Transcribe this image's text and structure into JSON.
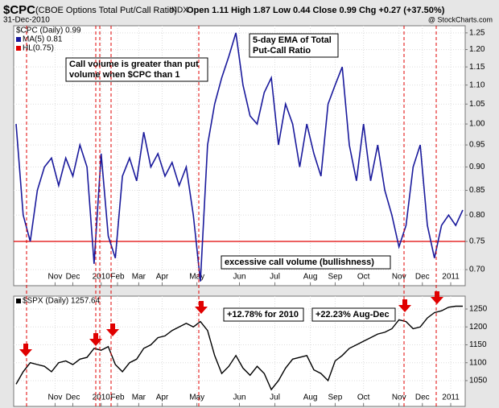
{
  "header": {
    "symbol": "$CPC",
    "name": "(CBOE Options Total Put/Call Ratio)",
    "exchange": "INDX",
    "date": "31-Dec-2010",
    "ohlc": "Open 1.11 High 1.87 Low 0.44 Close 0.99 Chg +0.27 (+37.50%)",
    "credit": "@ StockCharts.com"
  },
  "chart_data": [
    {
      "type": "line",
      "log_scale": true,
      "grid": true,
      "legend_header": "$CPC (Daily) 0.99",
      "xlim": [
        0,
        63
      ],
      "xticks": [
        {
          "value": 5.5,
          "label": "Nov"
        },
        {
          "value": 8,
          "label": "Dec"
        },
        {
          "value": 12,
          "label": "2010"
        },
        {
          "value": 14.3,
          "label": "Feb"
        },
        {
          "value": 17.3,
          "label": "Mar"
        },
        {
          "value": 20.6,
          "label": "Apr"
        },
        {
          "value": 25.5,
          "label": "May"
        },
        {
          "value": 31.5,
          "label": "Jun"
        },
        {
          "value": 36.5,
          "label": "Jul"
        },
        {
          "value": 41.5,
          "label": "Aug"
        },
        {
          "value": 45,
          "label": "Sep"
        },
        {
          "value": 49,
          "label": "Oct"
        },
        {
          "value": 54,
          "label": "Nov"
        },
        {
          "value": 57.3,
          "label": "Dec"
        },
        {
          "value": 61.3,
          "label": "2011"
        }
      ],
      "ylim": [
        0.673,
        1.272
      ],
      "yticks": [
        {
          "value": 0.7,
          "label": "0.70"
        },
        0.75,
        {
          "value": 0.8,
          "label": "0.80"
        },
        0.85,
        {
          "value": 0.9,
          "label": "0.90"
        },
        0.95,
        {
          "value": 1,
          "label": "1.00"
        },
        1.05,
        {
          "value": 1.1,
          "label": "1.10"
        },
        1.15,
        {
          "value": 1.2,
          "label": "1.20"
        },
        1.25
      ],
      "series": [
        {
          "name": "MA(5) 0.81",
          "color": "#1a1a9c",
          "values": [
            1.0,
            0.8,
            0.75,
            0.85,
            0.9,
            0.92,
            0.86,
            0.92,
            0.88,
            0.95,
            0.9,
            0.71,
            0.93,
            0.76,
            0.72,
            0.88,
            0.92,
            0.87,
            0.98,
            0.9,
            0.93,
            0.88,
            0.91,
            0.86,
            0.9,
            0.8,
            0.68,
            0.95,
            1.05,
            1.12,
            1.18,
            1.25,
            1.1,
            1.02,
            1.0,
            1.08,
            1.12,
            0.95,
            1.05,
            1.0,
            0.9,
            1.0,
            0.93,
            0.88,
            1.05,
            1.1,
            1.15,
            0.95,
            0.87,
            1.0,
            0.87,
            0.95,
            0.85,
            0.8,
            0.74,
            0.78,
            0.9,
            0.95,
            0.78,
            0.72,
            0.78,
            0.8,
            0.78,
            0.81
          ]
        }
      ],
      "hline": {
        "name": "HL(0.75)",
        "value": 0.75,
        "color": "#e00000"
      },
      "annotations": [
        {
          "lines": [
            "5-day EMA of Total",
            "Put-Call Ratio"
          ],
          "color": "#0000cc"
        },
        {
          "lines": [
            "Call volume is greater than put",
            "volume when $CPC than 1"
          ],
          "color": "#000000"
        },
        {
          "lines": [
            "excessive call volume (bullishness)"
          ],
          "color": "#e00000"
        }
      ]
    },
    {
      "type": "line",
      "grid": true,
      "xlim": [
        0,
        63
      ],
      "xticks": [
        {
          "value": 5.5,
          "label": "Nov"
        },
        {
          "value": 8,
          "label": "Dec"
        },
        {
          "value": 12,
          "label": "2010"
        },
        {
          "value": 14.3,
          "label": "Feb"
        },
        {
          "value": 17.3,
          "label": "Mar"
        },
        {
          "value": 20.6,
          "label": "Apr"
        },
        {
          "value": 25.5,
          "label": "May"
        },
        {
          "value": 31.5,
          "label": "Jun"
        },
        {
          "value": 36.5,
          "label": "Jul"
        },
        {
          "value": 41.5,
          "label": "Aug"
        },
        {
          "value": 45,
          "label": "Sep"
        },
        {
          "value": 49,
          "label": "Oct"
        },
        {
          "value": 54,
          "label": "Nov"
        },
        {
          "value": 57.3,
          "label": "Dec"
        },
        {
          "value": 61.3,
          "label": "2011"
        }
      ],
      "ylim": [
        978,
        1286
      ],
      "yticks": [
        1050,
        1100,
        1150,
        1200,
        1250
      ],
      "series": [
        {
          "name": "$SPX (Daily) 1257.64",
          "color": "#000000",
          "values": [
            1040,
            1075,
            1100,
            1095,
            1090,
            1075,
            1100,
            1105,
            1095,
            1110,
            1115,
            1140,
            1135,
            1145,
            1095,
            1075,
            1100,
            1110,
            1140,
            1150,
            1170,
            1175,
            1190,
            1200,
            1210,
            1200,
            1215,
            1190,
            1120,
            1070,
            1090,
            1120,
            1085,
            1065,
            1090,
            1070,
            1025,
            1050,
            1085,
            1110,
            1115,
            1120,
            1080,
            1070,
            1050,
            1105,
            1120,
            1140,
            1150,
            1160,
            1170,
            1180,
            1185,
            1195,
            1220,
            1215,
            1195,
            1200,
            1225,
            1240,
            1245,
            1255,
            1258,
            1258
          ]
        }
      ],
      "annotations": [
        {
          "lines": [
            "+12.78% for 2010"
          ],
          "color": "#0000cc"
        },
        {
          "lines": [
            "+22.23% Aug-Dec"
          ],
          "color": "#0000cc"
        }
      ]
    }
  ]
}
